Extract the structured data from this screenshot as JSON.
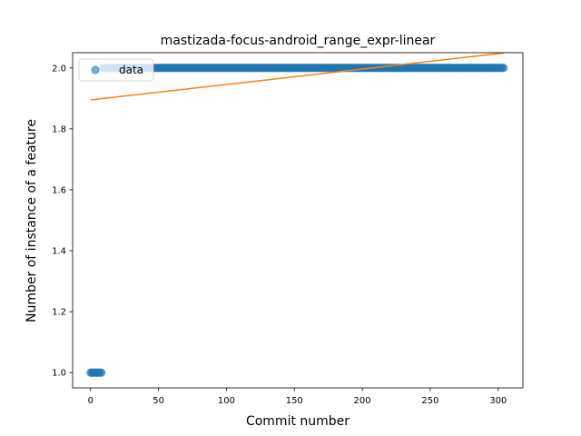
{
  "chart_data": {
    "type": "scatter",
    "title": "mastizada-focus-android_range_expr-linear",
    "xlabel": "Commit number",
    "ylabel": "Number of instance of a feature",
    "xlim": [
      -13.2,
      318.2
    ],
    "ylim": [
      0.95,
      2.05
    ],
    "xticks": [
      0,
      50,
      100,
      150,
      200,
      250,
      300
    ],
    "yticks": [
      1.0,
      1.2,
      1.4,
      1.6,
      1.8,
      2.0
    ],
    "ytick_labels": [
      "1.0",
      "1.2",
      "1.4",
      "1.6",
      "1.8",
      "2.0"
    ],
    "legend": {
      "placement": "top-left",
      "entries": [
        "data"
      ]
    },
    "grid": false,
    "series": [
      {
        "name": "data",
        "kind": "scatter",
        "color": "#1f77b4",
        "alpha": 0.6,
        "segments": [
          {
            "x_start": 0,
            "x_end": 8,
            "y": 1.0
          },
          {
            "x_start": 9,
            "x_end": 304,
            "y": 2.0
          }
        ]
      },
      {
        "kind": "line",
        "color": "#ff7f0e",
        "x": [
          0,
          304
        ],
        "y": [
          1.895,
          2.049
        ]
      }
    ]
  }
}
